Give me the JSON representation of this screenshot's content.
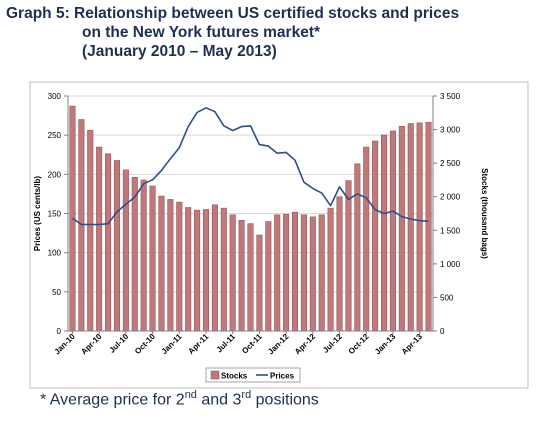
{
  "caption": {
    "line1": "Graph 5:  Relationship between US certified stocks and prices",
    "line2": "on the New York futures market*",
    "line3": "(January 2010 – May 2013)"
  },
  "footnote": {
    "prefix": "* Average price for 2",
    "sup1": "nd",
    "mid": " and 3",
    "sup2": "rd",
    "suffix": " positions"
  },
  "colors": {
    "bar_fill": "#c0797b",
    "bar_stroke": "#8c4b4d",
    "line": "#2f4f86",
    "grid": "#d9d9d9"
  },
  "chart_data": {
    "type": "bar",
    "title": "",
    "ylabel": "Prices (US cents/lb)",
    "y2label": "Stocks (thousand bags)",
    "ylim": [
      0,
      300
    ],
    "y2lim": [
      0,
      3500
    ],
    "yticks": [
      "0",
      "50",
      "100",
      "150",
      "200",
      "250",
      "300"
    ],
    "y2ticks": [
      "0",
      "500",
      "1 000",
      "1 500",
      "2 000",
      "2 500",
      "3 000",
      "3 500"
    ],
    "xtick_labels": [
      "Jan-10",
      "Apr-10",
      "Jul-10",
      "Oct-10",
      "Jan-11",
      "Apr-11",
      "Jul-11",
      "Oct-11",
      "Jan-12",
      "Apr-12",
      "Jul-12",
      "Oct-12",
      "Jan-13",
      "Apr-13"
    ],
    "legend_position": "bottom",
    "categories": [
      "Jan-10",
      "Feb-10",
      "Mar-10",
      "Apr-10",
      "May-10",
      "Jun-10",
      "Jul-10",
      "Aug-10",
      "Sep-10",
      "Oct-10",
      "Nov-10",
      "Dec-10",
      "Jan-11",
      "Feb-11",
      "Mar-11",
      "Apr-11",
      "May-11",
      "Jun-11",
      "Jul-11",
      "Aug-11",
      "Sep-11",
      "Oct-11",
      "Nov-11",
      "Dec-11",
      "Jan-12",
      "Feb-12",
      "Mar-12",
      "Apr-12",
      "May-12",
      "Jun-12",
      "Jul-12",
      "Aug-12",
      "Sep-12",
      "Oct-12",
      "Nov-12",
      "Dec-12",
      "Jan-13",
      "Feb-13",
      "Mar-13",
      "Apr-13",
      "May-13"
    ],
    "series": [
      {
        "name": "Stocks",
        "kind": "bar",
        "axis": "right",
        "values": [
          3350,
          3150,
          2990,
          2740,
          2640,
          2540,
          2400,
          2290,
          2250,
          2160,
          2010,
          1960,
          1920,
          1840,
          1800,
          1810,
          1880,
          1830,
          1730,
          1650,
          1600,
          1430,
          1630,
          1730,
          1740,
          1770,
          1730,
          1700,
          1730,
          1830,
          2000,
          2240,
          2490,
          2740,
          2830,
          2920,
          2980,
          3050,
          3090,
          3100,
          3110
        ]
      },
      {
        "name": "Prices",
        "kind": "line",
        "axis": "left",
        "values": [
          144,
          136,
          136,
          136,
          137,
          152,
          162,
          171,
          188,
          193,
          205,
          220,
          234,
          261,
          279,
          285,
          280,
          262,
          256,
          261,
          262,
          238,
          236,
          227,
          228,
          218,
          190,
          182,
          176,
          160,
          184,
          168,
          175,
          170,
          155,
          150,
          153,
          146,
          143,
          141,
          140
        ]
      }
    ]
  }
}
